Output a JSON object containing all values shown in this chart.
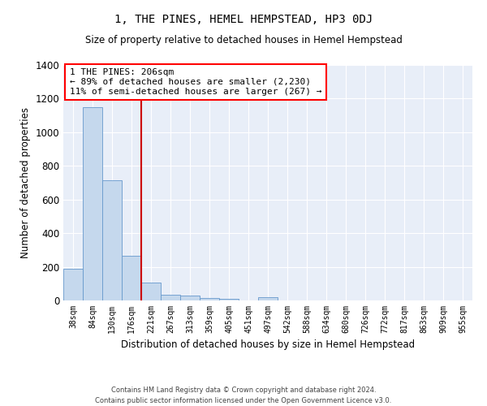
{
  "title": "1, THE PINES, HEMEL HEMPSTEAD, HP3 0DJ",
  "subtitle": "Size of property relative to detached houses in Hemel Hempstead",
  "xlabel": "Distribution of detached houses by size in Hemel Hempstead",
  "ylabel": "Number of detached properties",
  "bar_color": "#c5d8ed",
  "bar_edge_color": "#6699cc",
  "background_color": "#e8eef8",
  "grid_color": "white",
  "categories": [
    "38sqm",
    "84sqm",
    "130sqm",
    "176sqm",
    "221sqm",
    "267sqm",
    "313sqm",
    "359sqm",
    "405sqm",
    "451sqm",
    "497sqm",
    "542sqm",
    "588sqm",
    "634sqm",
    "680sqm",
    "726sqm",
    "772sqm",
    "817sqm",
    "863sqm",
    "909sqm",
    "955sqm"
  ],
  "values": [
    190,
    1150,
    715,
    265,
    107,
    35,
    28,
    15,
    10,
    0,
    17,
    0,
    0,
    0,
    0,
    0,
    0,
    0,
    0,
    0,
    0
  ],
  "ylim": [
    0,
    1400
  ],
  "yticks": [
    0,
    200,
    400,
    600,
    800,
    1000,
    1200,
    1400
  ],
  "property_label": "1 THE PINES: 206sqm",
  "annotation_line1": "← 89% of detached houses are smaller (2,230)",
  "annotation_line2": "11% of semi-detached houses are larger (267) →",
  "vline_position": 3.5,
  "footer_line1": "Contains HM Land Registry data © Crown copyright and database right 2024.",
  "footer_line2": "Contains public sector information licensed under the Open Government Licence v3.0."
}
